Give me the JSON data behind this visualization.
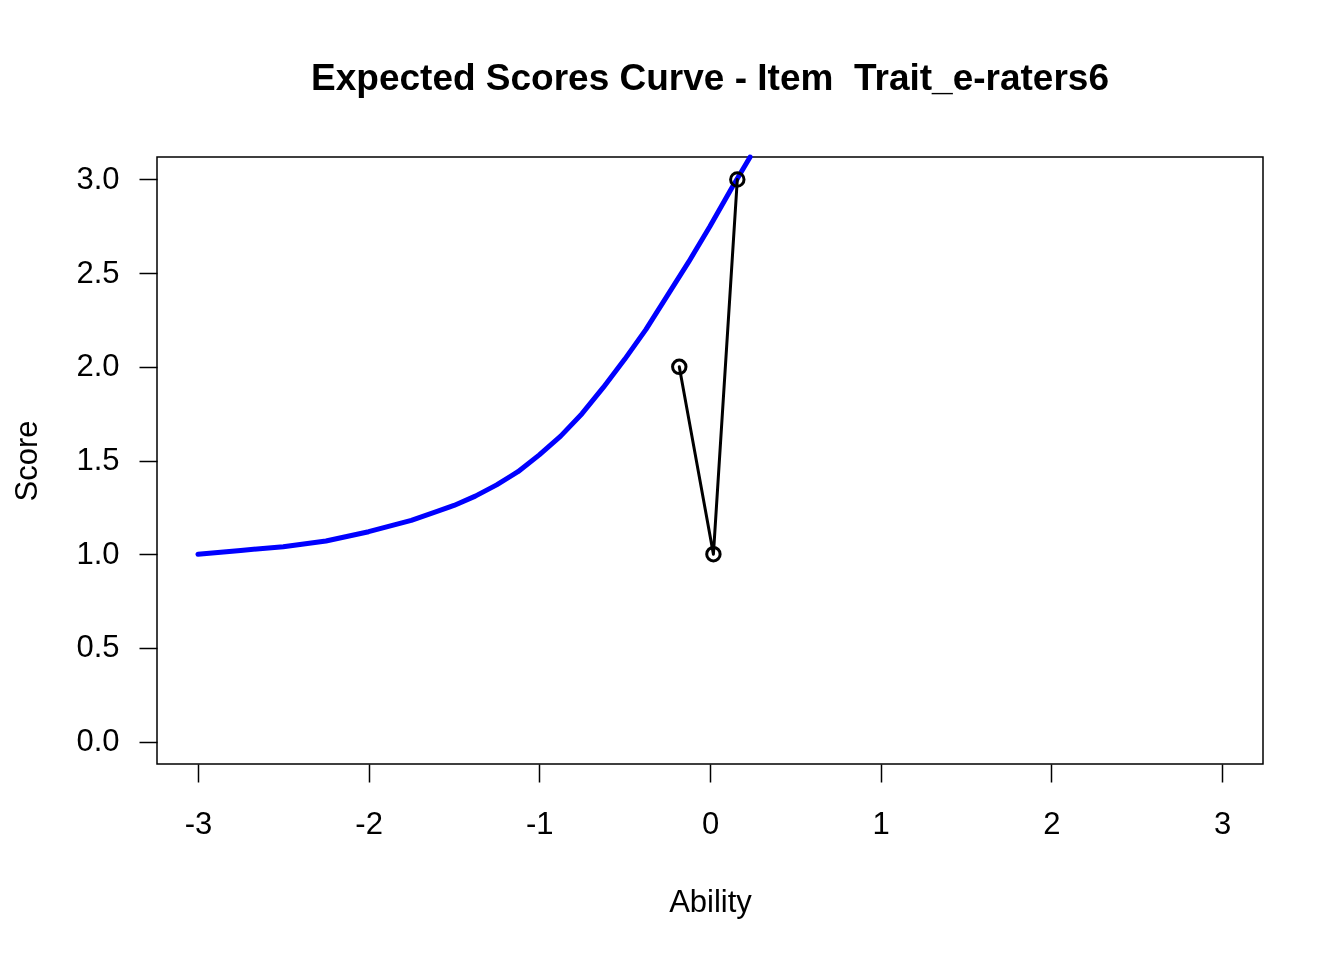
{
  "chart_data": {
    "type": "line",
    "title": "Expected Scores Curve - Item  Trait_e-raters6",
    "xlabel": "Ability",
    "ylabel": "Score",
    "xlim": [
      -3.24,
      3.24
    ],
    "ylim": [
      -0.12,
      3.12
    ],
    "xticks": [
      -3,
      -2,
      -1,
      0,
      1,
      2,
      3
    ],
    "yticks": [
      {
        "value": 0,
        "label": "0.0"
      },
      0.5,
      {
        "value": 1,
        "label": "1.0"
      },
      1.5,
      {
        "value": 2,
        "label": "2.0"
      },
      2.5,
      {
        "value": 3,
        "label": "3.0"
      }
    ],
    "series": [
      {
        "color": "#0000ff",
        "x": [
          -3,
          -2.75,
          -2.5,
          -2.25,
          -2,
          -1.75,
          -1.5,
          -1.375,
          -1.25,
          -1.125,
          -1,
          -0.875,
          -0.75,
          -0.625,
          -0.5,
          -0.375,
          -0.25,
          -0.125,
          0,
          0.125,
          0.235
        ],
        "values": [
          1.0,
          1.02,
          1.04,
          1.07,
          1.12,
          1.18,
          1.26,
          1.31,
          1.37,
          1.44,
          1.53,
          1.63,
          1.75,
          1.89,
          2.04,
          2.2,
          2.38,
          2.56,
          2.75,
          2.95,
          3.12
        ]
      },
      {
        "color": "#000000",
        "marker": "circle",
        "x": [
          -0.18,
          0.02,
          0.16
        ],
        "values": [
          2,
          1,
          3
        ]
      }
    ]
  }
}
